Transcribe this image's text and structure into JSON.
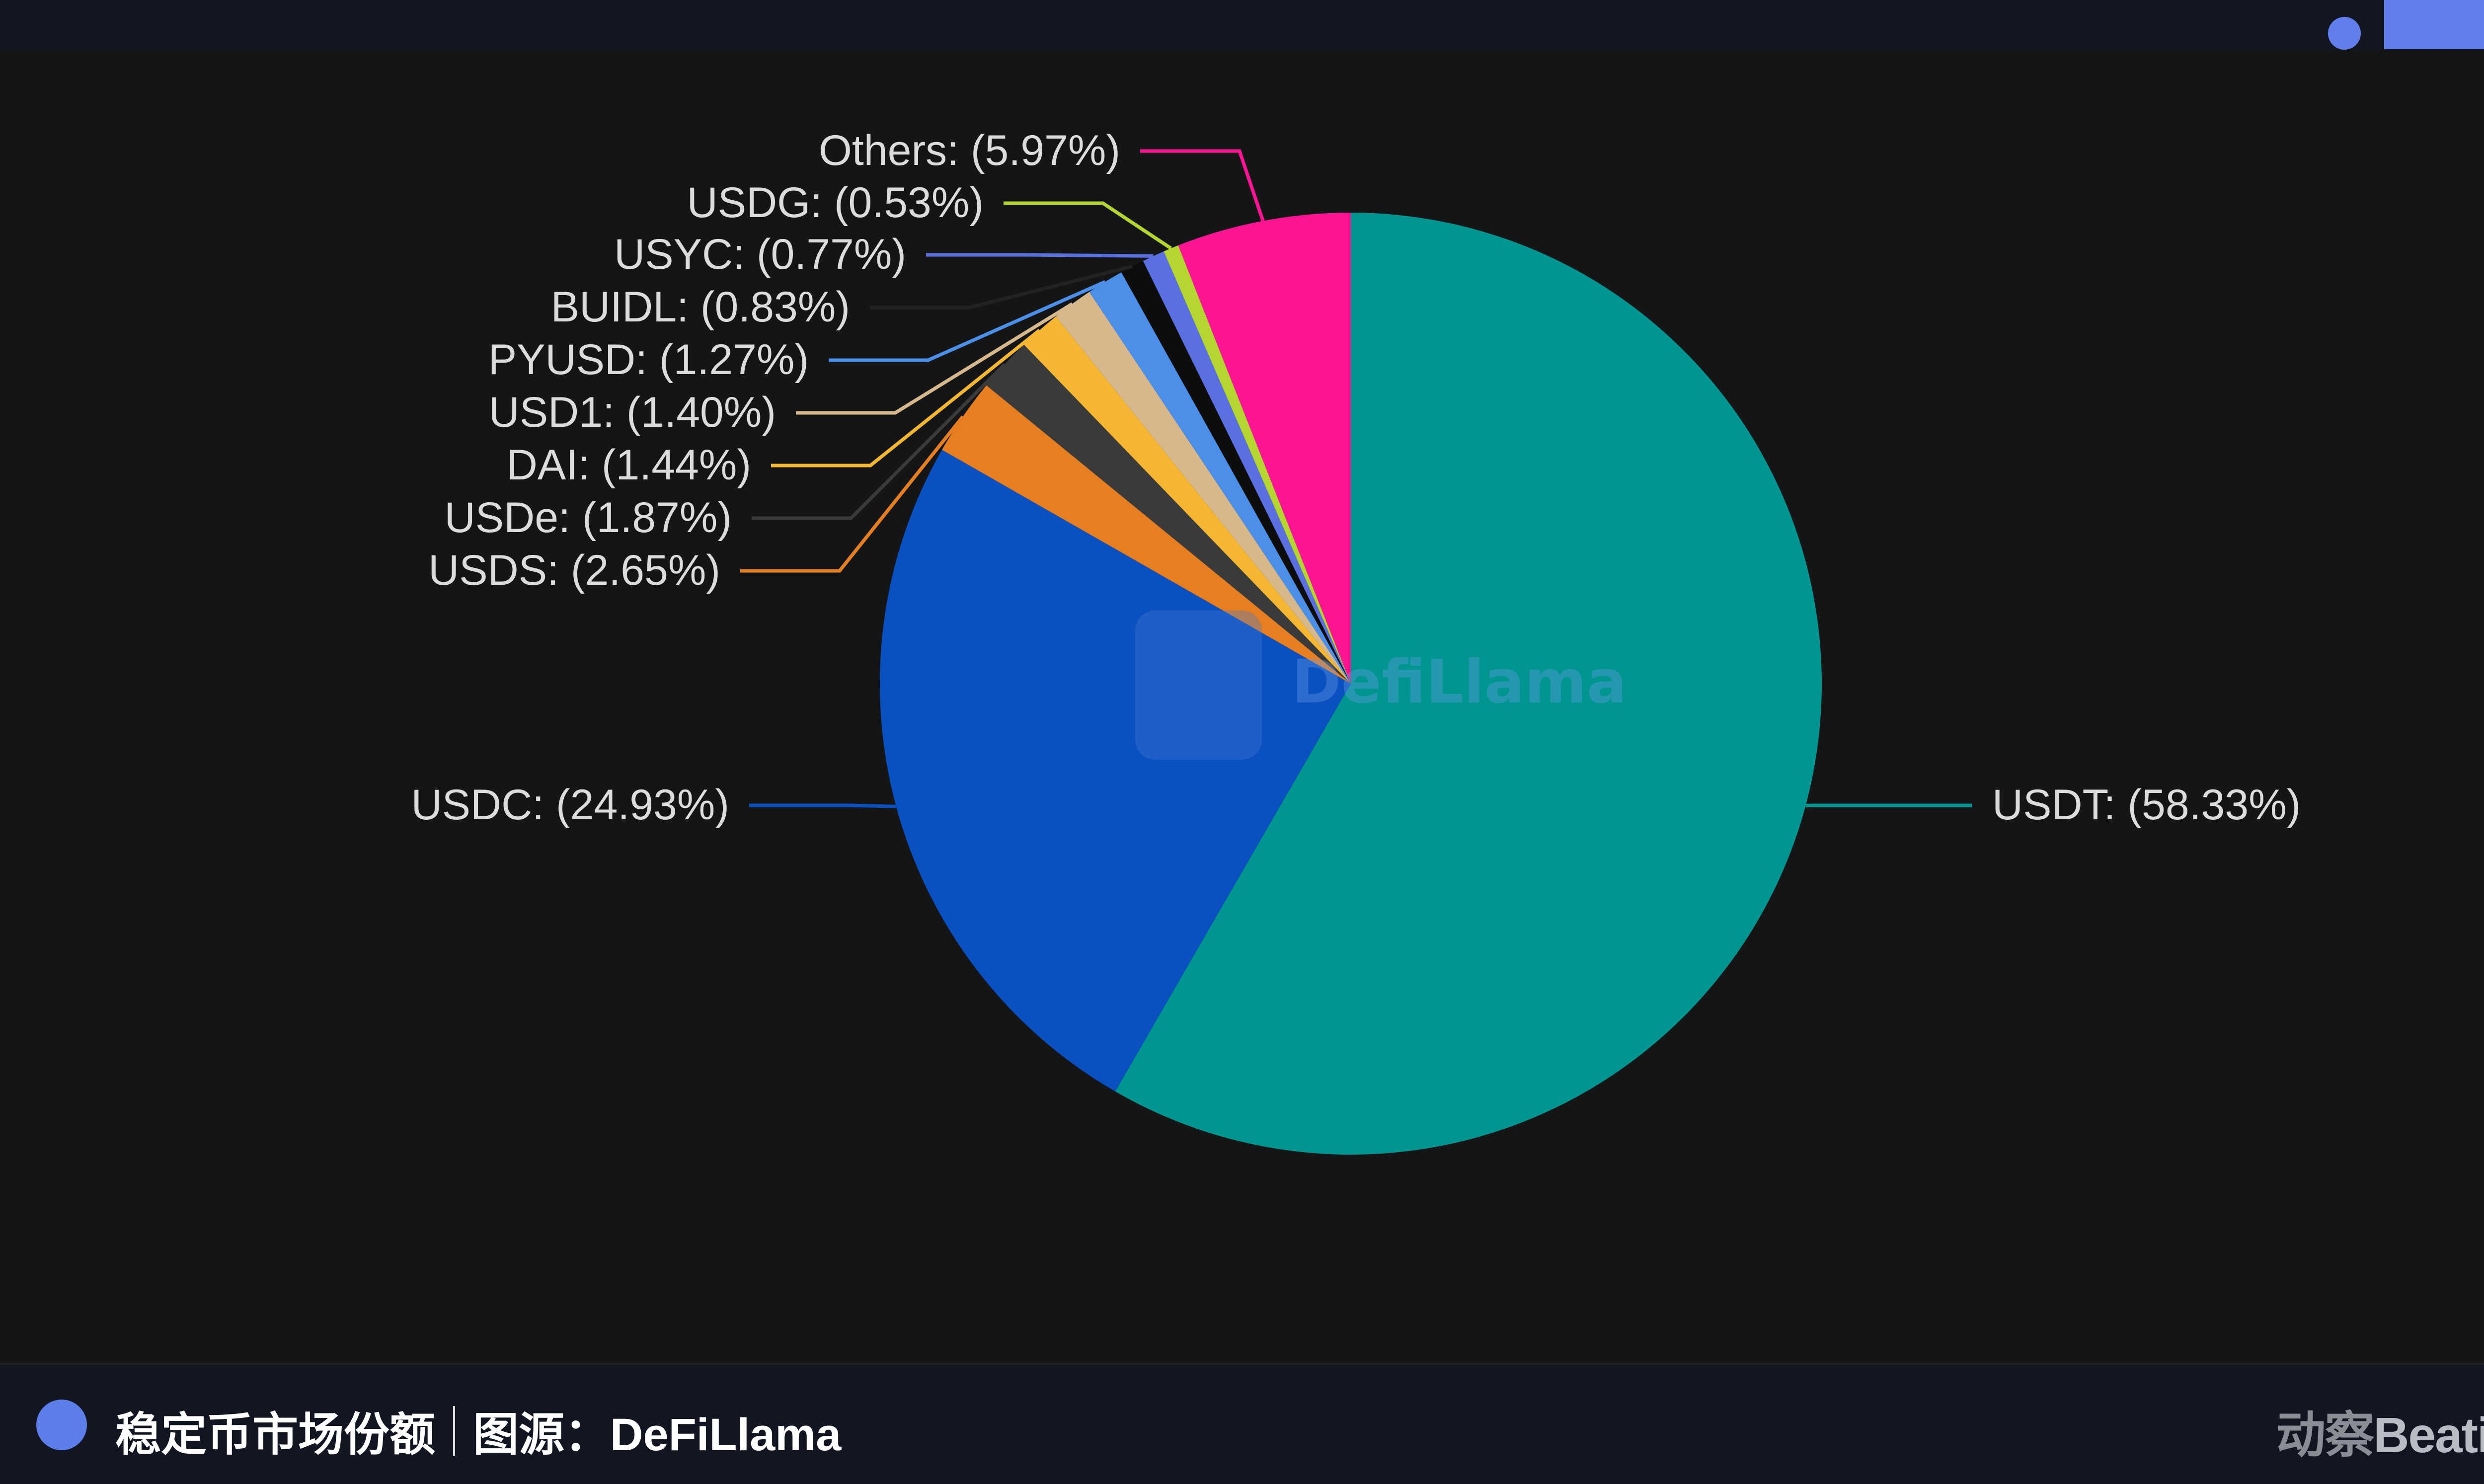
{
  "chart_data": {
    "type": "pie",
    "title": "",
    "start_angle": "top, clockwise",
    "slices": [
      {
        "label": "USDT",
        "value": 58.33,
        "color": "#009591"
      },
      {
        "label": "USDC",
        "value": 24.93,
        "color": "#0b50c0"
      },
      {
        "label": "USDS",
        "value": 2.65,
        "color": "#e67e22"
      },
      {
        "label": "USDe",
        "value": 1.87,
        "color": "#3a3a3a"
      },
      {
        "label": "DAI",
        "value": 1.44,
        "color": "#f5b731"
      },
      {
        "label": "USD1",
        "value": 1.4,
        "color": "#d6b88c"
      },
      {
        "label": "PYUSD",
        "value": 1.27,
        "color": "#4c8fe8"
      },
      {
        "label": "BUIDL",
        "value": 0.83,
        "color": "#0d0d0d"
      },
      {
        "label": "USYC",
        "value": 0.77,
        "color": "#5a6fe0"
      },
      {
        "label": "USDG",
        "value": 0.53,
        "color": "#b5d630"
      },
      {
        "label": "Others",
        "value": 5.97,
        "color": "#ff1493"
      }
    ],
    "label_format": "{label}: ({value}%)",
    "watermark": "DefiLlama"
  },
  "footer": {
    "title": "稳定币市场份额",
    "source": "图源：DeFiLlama",
    "logo_cn": "动察",
    "logo_en": "Beating"
  },
  "colors": {
    "accent": "#627eea",
    "background": "#141517",
    "bar": "#121522"
  }
}
